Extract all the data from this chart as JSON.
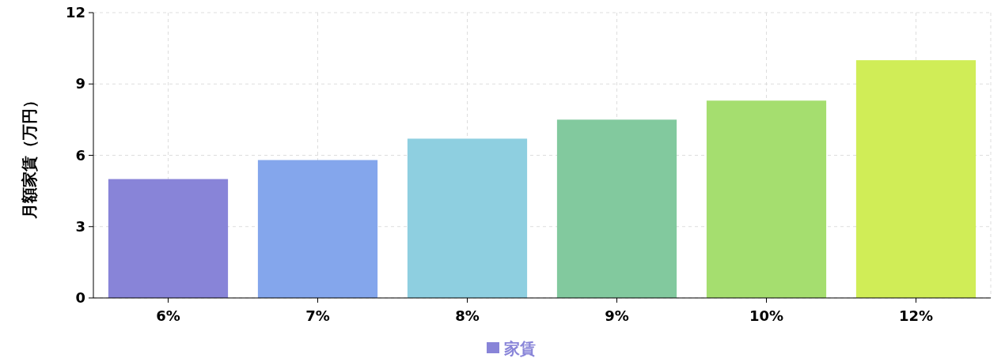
{
  "chart_data": {
    "type": "bar",
    "ylabel": "月額家賃（万円）",
    "categories": [
      "6%",
      "7%",
      "8%",
      "9%",
      "10%",
      "12%"
    ],
    "series": [
      {
        "name": "家賃",
        "colors": [
          "#8884d8",
          "#84a6ec",
          "#8ecfe0",
          "#82c99e",
          "#a5de6f",
          "#d0ed57"
        ],
        "values": [
          5.0,
          5.8,
          6.7,
          7.5,
          8.3,
          10.0
        ]
      }
    ],
    "ylim": [
      0,
      12
    ],
    "yticks": [
      0,
      3,
      6,
      9,
      12
    ],
    "grid": true,
    "legend": "bottom"
  }
}
